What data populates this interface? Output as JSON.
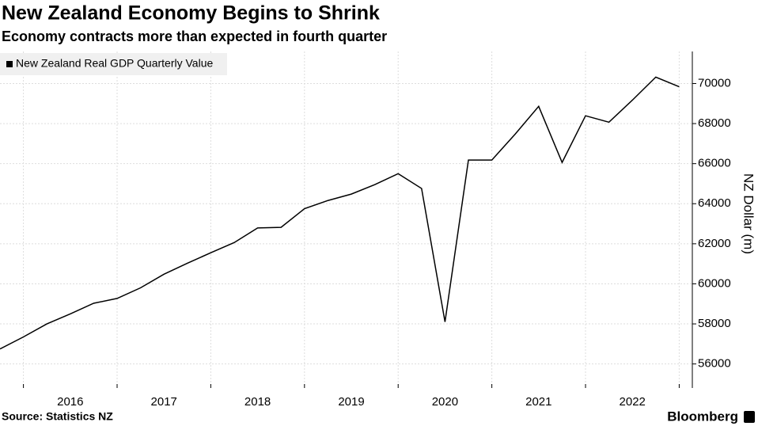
{
  "chart_data": {
    "type": "line",
    "title": "New Zealand Economy Begins to Shrink",
    "subtitle": "Economy contracts more than expected in fourth quarter",
    "y_label": "NZ Dollar (m)",
    "source": "Source: Statistics NZ",
    "brand": "Bloomberg",
    "x": [
      2015.75,
      2016,
      2016.25,
      2016.5,
      2016.75,
      2017,
      2017.25,
      2017.5,
      2017.75,
      2018,
      2018.25,
      2018.5,
      2018.75,
      2019,
      2019.25,
      2019.5,
      2019.75,
      2020,
      2020.25,
      2020.5,
      2020.75,
      2021,
      2021.25,
      2021.5,
      2021.75,
      2022,
      2022.25,
      2022.5,
      2022.75,
      2023
    ],
    "series": [
      {
        "name": "New Zealand Real GDP Quarterly Value",
        "color": "#000000",
        "values": [
          56750,
          57350,
          58000,
          58500,
          59030,
          59270,
          59800,
          60480,
          61030,
          61550,
          62060,
          62790,
          62820,
          63750,
          64160,
          64480,
          64950,
          65500,
          64760,
          58100,
          66180,
          66180,
          67480,
          68860,
          66060,
          68390,
          68070,
          69170,
          70320,
          69840
        ]
      }
    ],
    "xlim": [
      2015.75,
      2023.14
    ],
    "xticks": [
      {
        "value": 2016.5,
        "label": "2016"
      },
      {
        "value": 2017.5,
        "label": "2017"
      },
      {
        "value": 2018.5,
        "label": "2018"
      },
      {
        "value": 2019.5,
        "label": "2019"
      },
      {
        "value": 2020.5,
        "label": "2020"
      },
      {
        "value": 2021.5,
        "label": "2021"
      },
      {
        "value": 2022.5,
        "label": "2022"
      }
    ],
    "xgrid": [
      2016,
      2017,
      2018,
      2019,
      2020,
      2021,
      2022,
      2023
    ],
    "ylim": [
      54800,
      71600
    ],
    "yticks": [
      56000,
      58000,
      60000,
      62000,
      64000,
      66000,
      68000,
      70000
    ],
    "grid": true,
    "legend": "top-left"
  }
}
